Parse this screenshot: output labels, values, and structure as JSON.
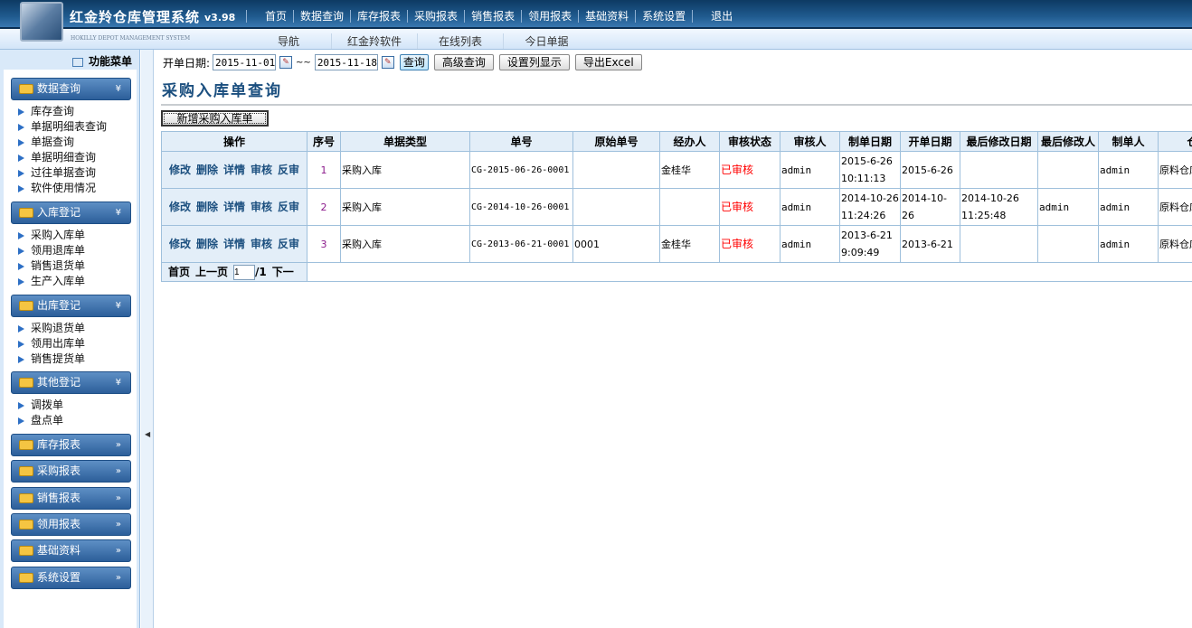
{
  "header": {
    "title": "红金羚仓库管理系统",
    "version": "v3.98",
    "subtitle": "HOKILLY DEPOT MANAGEMENT SYSTEM",
    "nav": [
      "首页",
      "数据查询",
      "库存报表",
      "采购报表",
      "销售报表",
      "领用报表",
      "基础资料",
      "系统设置",
      "退出"
    ],
    "subnav": [
      "导航",
      "红金羚软件",
      "在线列表",
      "今日单据"
    ]
  },
  "sidebar": {
    "title": "功能菜单",
    "groups": [
      {
        "label": "数据查询",
        "items": [
          "库存查询",
          "单据明细表查询",
          "单据查询",
          "单据明细查询",
          "过往单据查询",
          "软件使用情况"
        ]
      },
      {
        "label": "入库登记",
        "items": [
          "采购入库单",
          "领用退库单",
          "销售退货单",
          "生产入库单"
        ]
      },
      {
        "label": "出库登记",
        "items": [
          "采购退货单",
          "领用出库单",
          "销售提货单"
        ]
      },
      {
        "label": "其他登记",
        "items": [
          "调拨单",
          "盘点单"
        ]
      },
      {
        "label": "库存报表"
      },
      {
        "label": "采购报表"
      },
      {
        "label": "销售报表"
      },
      {
        "label": "领用报表"
      },
      {
        "label": "基础资料"
      },
      {
        "label": "系统设置"
      }
    ]
  },
  "toolbar": {
    "date_label": "开单日期:",
    "date_from": "2015-11-01",
    "sep": "~~",
    "date_to": "2015-11-18",
    "query": "查询",
    "advanced": "高级查询",
    "columns": "设置列显示",
    "export": "导出Excel"
  },
  "page_title": "采购入库单查询",
  "add_button": "新增采购入库单",
  "table": {
    "headers": [
      "操作",
      "序号",
      "单据类型",
      "单号",
      "原始单号",
      "经办人",
      "审核状态",
      "审核人",
      "制单日期",
      "开单日期",
      "最后修改日期",
      "最后修改人",
      "制单人",
      "仓库"
    ],
    "actions": [
      "修改",
      "删除",
      "详情",
      "审核",
      "反审"
    ],
    "rows": [
      {
        "seq": "1",
        "type": "采购入库",
        "no": "CG-2015-06-26-0001",
        "orig": "",
        "handler": "金桂华",
        "status": "已审核",
        "auditor": "admin",
        "created": "2015-6-26 10:11:13",
        "date": "2015-6-26",
        "modified": "",
        "modifier": "",
        "creator": "admin",
        "warehouse": "原料仓库"
      },
      {
        "seq": "2",
        "type": "采购入库",
        "no": "CG-2014-10-26-0001",
        "orig": "",
        "handler": "",
        "status": "已审核",
        "auditor": "admin",
        "created": "2014-10-26 11:24:26",
        "date": "2014-10-26",
        "modified": "2014-10-26 11:25:48",
        "modifier": "admin",
        "creator": "admin",
        "warehouse": "原料仓库"
      },
      {
        "seq": "3",
        "type": "采购入库",
        "no": "CG-2013-06-21-0001",
        "orig": "0001",
        "handler": "金桂华",
        "status": "已审核",
        "auditor": "admin",
        "created": "2013-6-21 9:09:49",
        "date": "2013-6-21",
        "modified": "",
        "modifier": "",
        "creator": "admin",
        "warehouse": "原料仓库"
      }
    ]
  },
  "pager": {
    "first": "首页",
    "prev": "上一页",
    "page": "1",
    "total": "/1",
    "next": "下一"
  },
  "colors": {
    "header_bg": "#1f5a8e",
    "accent": "#1b4f7f",
    "status_red": "#ff0000"
  }
}
